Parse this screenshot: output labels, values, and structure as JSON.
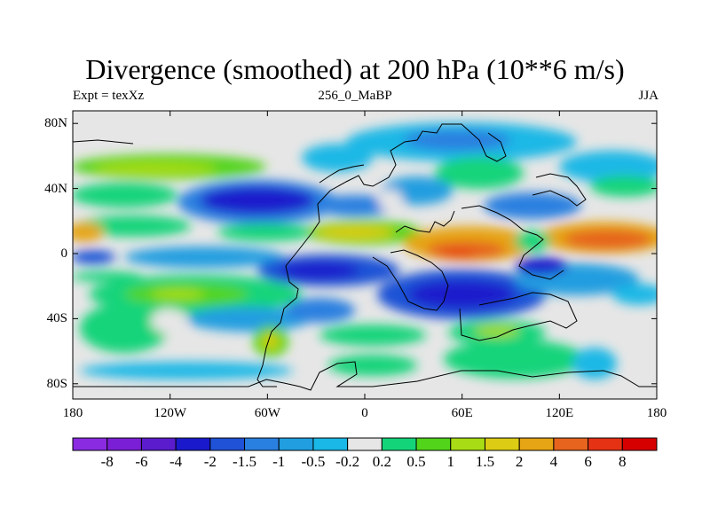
{
  "title": "Divergence (smoothed) at 200 hPa (10**6 m/s)",
  "subtitle_left": "Expt = texXz",
  "subtitle_center": "256_0_MaBP",
  "subtitle_right": "JJA",
  "chart_data": {
    "type": "heatmap",
    "variable": "Divergence (smoothed) at 200 hPa",
    "units": "10**6 m/s",
    "season": "JJA",
    "lon_range": [
      -180,
      180
    ],
    "lat_range": [
      -90,
      90
    ],
    "lon_ticks": [
      {
        "value": -180,
        "label": "180"
      },
      {
        "value": -120,
        "label": "120W"
      },
      {
        "value": -60,
        "label": "60W"
      },
      {
        "value": 0,
        "label": "0"
      },
      {
        "value": 60,
        "label": "60E"
      },
      {
        "value": 120,
        "label": "120E"
      },
      {
        "value": 180,
        "label": "180"
      }
    ],
    "lat_ticks": [
      {
        "value": 80,
        "label": "80N"
      },
      {
        "value": 40,
        "label": "40N"
      },
      {
        "value": 0,
        "label": "0"
      },
      {
        "value": -40,
        "label": "40S"
      },
      {
        "value": -80,
        "label": "80S"
      }
    ],
    "colorbar": {
      "levels": [
        "-8",
        "-6",
        "-4",
        "-2",
        "-1.5",
        "-1",
        "-0.5",
        "-0.2",
        "0.2",
        "0.5",
        "1",
        "1.5",
        "2",
        "4",
        "6",
        "8"
      ],
      "colors": [
        "#8a2be2",
        "#7a1fd6",
        "#5a1ccc",
        "#1a1acc",
        "#1f52d6",
        "#2a80e0",
        "#209ee0",
        "#1ab8e6",
        "#e6e6e6",
        "#14d47a",
        "#52d41a",
        "#a8dc14",
        "#dccc14",
        "#e6a514",
        "#e6641e",
        "#e63214",
        "#d70000"
      ]
    },
    "features": [
      {
        "name": "northern midlatitude negative band",
        "lat_center": 50,
        "sign": "negative",
        "peak_value": -2
      },
      {
        "name": "equatorial positive band",
        "lat_center": 5,
        "sign": "positive",
        "peak_value": 6
      },
      {
        "name": "southern tropical negative band",
        "lat_center": -20,
        "sign": "negative",
        "peak_value": -4
      },
      {
        "name": "southern midlatitude positive band",
        "lat_center": -40,
        "sign": "positive",
        "peak_value": 1.5
      }
    ]
  }
}
